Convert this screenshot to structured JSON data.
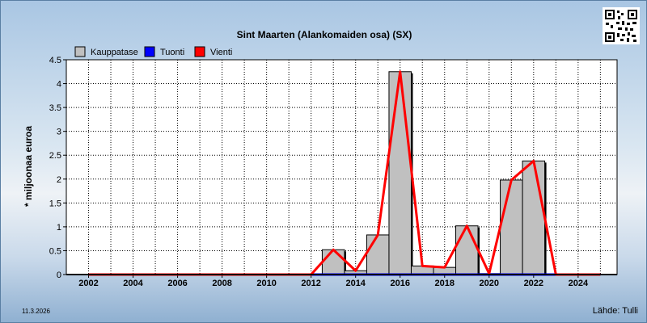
{
  "chart_data": {
    "type": "bar",
    "title": "Sint Maarten (Alankomaiden osa) (SX)",
    "ylabel": "* miljoonaa euroa",
    "xlabel": "",
    "ylim": [
      0,
      4.5
    ],
    "yticks": [
      "0",
      "0.5",
      "1",
      "1.5",
      "2",
      "2.5",
      "3",
      "3.5",
      "4",
      "4.5"
    ],
    "xticks": [
      "2002",
      "2004",
      "2006",
      "2008",
      "2010",
      "2012",
      "2014",
      "2016",
      "2018",
      "2020",
      "2022",
      "2024"
    ],
    "grid": true,
    "legend_position": "top-left",
    "x": [
      2002,
      2003,
      2004,
      2005,
      2006,
      2007,
      2008,
      2009,
      2010,
      2011,
      2012,
      2013,
      2014,
      2015,
      2016,
      2017,
      2018,
      2019,
      2020,
      2021,
      2022,
      2023,
      2024,
      2025
    ],
    "series": [
      {
        "name": "Kauppatase",
        "kind": "bar",
        "color": "#c0c0c0",
        "values": [
          0,
          0,
          0,
          0,
          0,
          0,
          0,
          0,
          0,
          0,
          0,
          0.52,
          0.08,
          0.83,
          4.25,
          0.18,
          0.15,
          1.02,
          0.02,
          1.98,
          2.38,
          0,
          0,
          0
        ]
      },
      {
        "name": "Tuonti",
        "kind": "line",
        "color": "#0000ff",
        "values": [
          0,
          0,
          0,
          0,
          0,
          0,
          0,
          0,
          0,
          0,
          0,
          0,
          0,
          0,
          0,
          0,
          0,
          0,
          0,
          0,
          0,
          0,
          0,
          0
        ]
      },
      {
        "name": "Vienti",
        "kind": "line",
        "color": "#ff0000",
        "values": [
          0,
          0,
          0,
          0,
          0,
          0,
          0,
          0,
          0,
          0,
          0,
          0.52,
          0.08,
          0.83,
          4.25,
          0.18,
          0.15,
          1.02,
          0.02,
          1.98,
          2.38,
          0,
          0,
          0
        ]
      }
    ]
  },
  "footer": {
    "date": "11.3.2026",
    "source": "Lähde: Tulli"
  },
  "icons": {
    "qr": "qr-code-icon"
  }
}
